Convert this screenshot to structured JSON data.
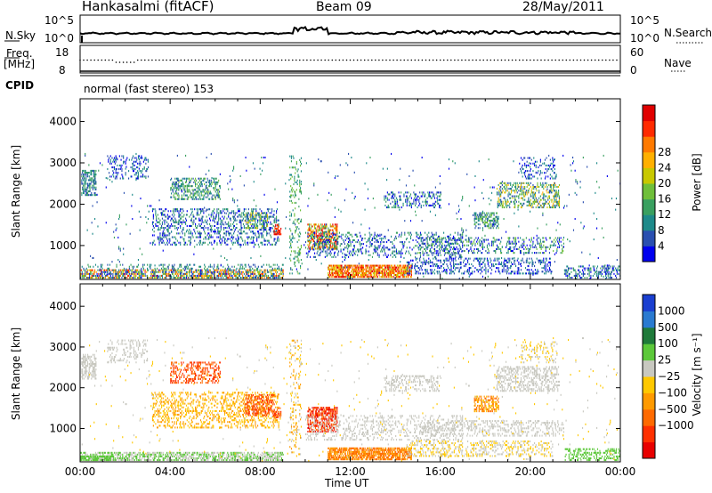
{
  "header": {
    "station": "Hankasalmi (fitACF)",
    "beam": "Beam 09",
    "date": "28/May/2011"
  },
  "summary": {
    "nsky_label": "N.Sky",
    "nsky_ticks": [
      "10^5",
      "10^0"
    ],
    "nsearch_label": "N.Search",
    "nsearch_ticks": [
      "10^5",
      "10^0"
    ],
    "freq_label_1": "Freq.",
    "freq_label_2": "[MHz]",
    "freq_ticks": [
      "18",
      "8"
    ],
    "nave_label": "Nave",
    "nave_ticks": [
      "60",
      "0"
    ],
    "cpid_label": "CPID",
    "cpid_text": "normal (fast stereo) 153"
  },
  "chart_data": [
    {
      "type": "heatmap",
      "name": "power",
      "ylabel": "Slant Range [km]",
      "yticks": [
        "1000",
        "2000",
        "3000",
        "4000"
      ],
      "ylim": [
        180,
        4550
      ],
      "colorbar_label": "Power [dB]",
      "colorbar_ticks": [
        "4",
        "8",
        "12",
        "16",
        "20",
        "24",
        "28"
      ],
      "colors": [
        "#0000ee",
        "#2a4fb0",
        "#1e8a8a",
        "#3aa060",
        "#6fbf3a",
        "#c8c800",
        "#ffb000",
        "#ff7a00",
        "#ff2a00",
        "#e00000"
      ]
    },
    {
      "type": "heatmap",
      "name": "velocity",
      "ylabel": "Slant Range [km]",
      "yticks": [
        "1000",
        "2000",
        "3000",
        "4000"
      ],
      "ylim": [
        180,
        4550
      ],
      "xlabel": "Time UT",
      "xticks": [
        "00:00",
        "04:00",
        "08:00",
        "12:00",
        "16:00",
        "20:00",
        "00:00"
      ],
      "colorbar_label": "Velocity [m s⁻¹]",
      "colorbar_ticks": [
        "1000",
        "500",
        "100",
        "25",
        "−25",
        "−100",
        "−500",
        "−1000"
      ],
      "colors": [
        "#1a3fd0",
        "#2a7ad0",
        "#1f7a3a",
        "#5cc83a",
        "#c8c8c0",
        "#ffc800",
        "#ff9a00",
        "#ff6a00",
        "#ff3000",
        "#e80000"
      ]
    }
  ]
}
